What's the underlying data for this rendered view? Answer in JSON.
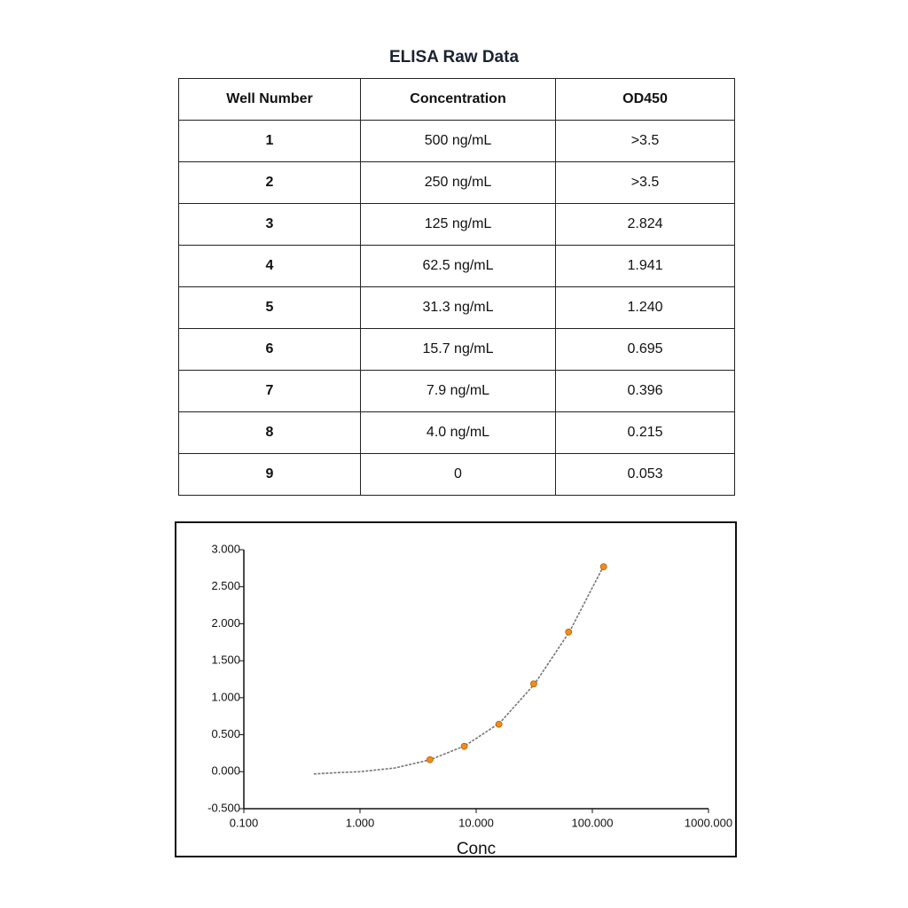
{
  "title": "ELISA Raw Data",
  "table": {
    "header": [
      "Well Number",
      "Concentration",
      "OD450"
    ],
    "rows": [
      [
        "1",
        "500 ng/mL",
        ">3.5"
      ],
      [
        "2",
        "250 ng/mL",
        ">3.5"
      ],
      [
        "3",
        "125 ng/mL",
        "2.824"
      ],
      [
        "4",
        "62.5 ng/mL",
        "1.941"
      ],
      [
        "5",
        "31.3 ng/mL",
        "1.240"
      ],
      [
        "6",
        "15.7 ng/mL",
        "0.695"
      ],
      [
        "7",
        "7.9 ng/mL",
        "0.396"
      ],
      [
        "8",
        "4.0 ng/mL",
        "0.215"
      ],
      [
        "9",
        "0",
        "0.053"
      ]
    ]
  },
  "chart_data": {
    "type": "scatter",
    "x_label": "Conc",
    "log_x": true,
    "xlim": [
      0.1,
      1000
    ],
    "xticks": [
      {
        "value": 0.1,
        "label": "0.100"
      },
      {
        "value": 1,
        "label": "1.000"
      },
      {
        "value": 10,
        "label": "10.000"
      },
      {
        "value": 100,
        "label": "100.000"
      },
      {
        "value": 1000,
        "label": "1000.000"
      }
    ],
    "ylim": [
      -0.5,
      3
    ],
    "yticks": [
      {
        "value": -0.5,
        "label": "-0.500"
      },
      {
        "value": 0,
        "label": "0.000"
      },
      {
        "value": 0.5,
        "label": "0.500"
      },
      {
        "value": 1,
        "label": "1.000"
      },
      {
        "value": 1.5,
        "label": "1.500"
      },
      {
        "value": 2,
        "label": "2.000"
      },
      {
        "value": 2.5,
        "label": "2.500"
      },
      {
        "value": 3,
        "label": "3.000"
      }
    ],
    "grid": false,
    "series": [
      {
        "type": "line",
        "color": "#777777",
        "dashed": true,
        "x": [
          0.4,
          0.7,
          1,
          2,
          4,
          8,
          16,
          32,
          64,
          125
        ],
        "values": [
          -0.03,
          -0.01,
          0.0,
          0.05,
          0.16,
          0.35,
          0.66,
          1.19,
          1.9,
          2.78
        ]
      },
      {
        "type": "scatter",
        "color": "#f28c1e",
        "x": [
          4.0,
          7.9,
          15.7,
          31.3,
          62.5,
          125
        ],
        "values": [
          0.162,
          0.343,
          0.642,
          1.187,
          1.888,
          2.771
        ]
      }
    ]
  }
}
